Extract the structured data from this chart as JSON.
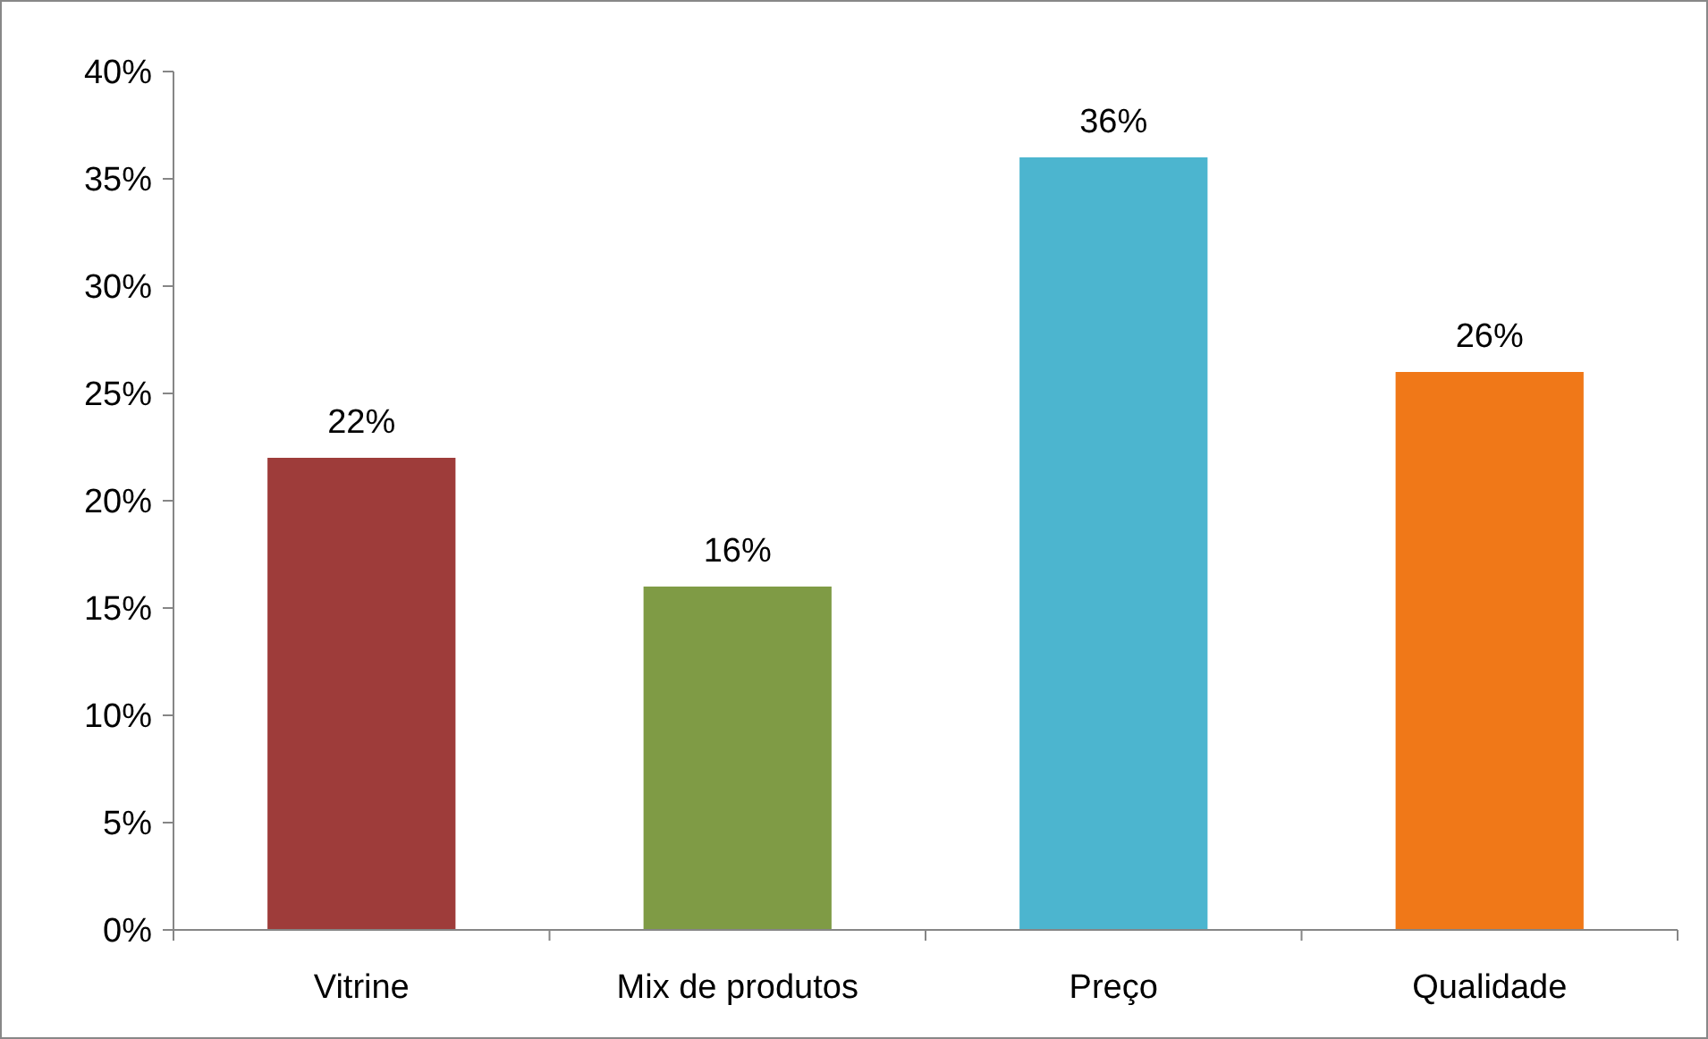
{
  "chart_data": {
    "type": "bar",
    "categories": [
      "Vitrine",
      "Mix de produtos",
      "Preço",
      "Qualidade"
    ],
    "values": [
      22,
      16,
      36,
      26
    ],
    "colors": [
      "#9e3c3a",
      "#7f9b45",
      "#4cb5cf",
      "#f07818"
    ],
    "value_labels": [
      "22%",
      "16%",
      "36%",
      "26%"
    ],
    "ylim": [
      0,
      40
    ],
    "yticks": [
      {
        "value": 0,
        "label": "0%"
      },
      {
        "value": 5,
        "label": "5%"
      },
      {
        "value": 10,
        "label": "10%"
      },
      {
        "value": 15,
        "label": "15%"
      },
      {
        "value": 20,
        "label": "20%"
      },
      {
        "value": 25,
        "label": "25%"
      },
      {
        "value": 30,
        "label": "30%"
      },
      {
        "value": 35,
        "label": "35%"
      },
      {
        "value": 40,
        "label": "40%"
      }
    ],
    "grid": false
  }
}
